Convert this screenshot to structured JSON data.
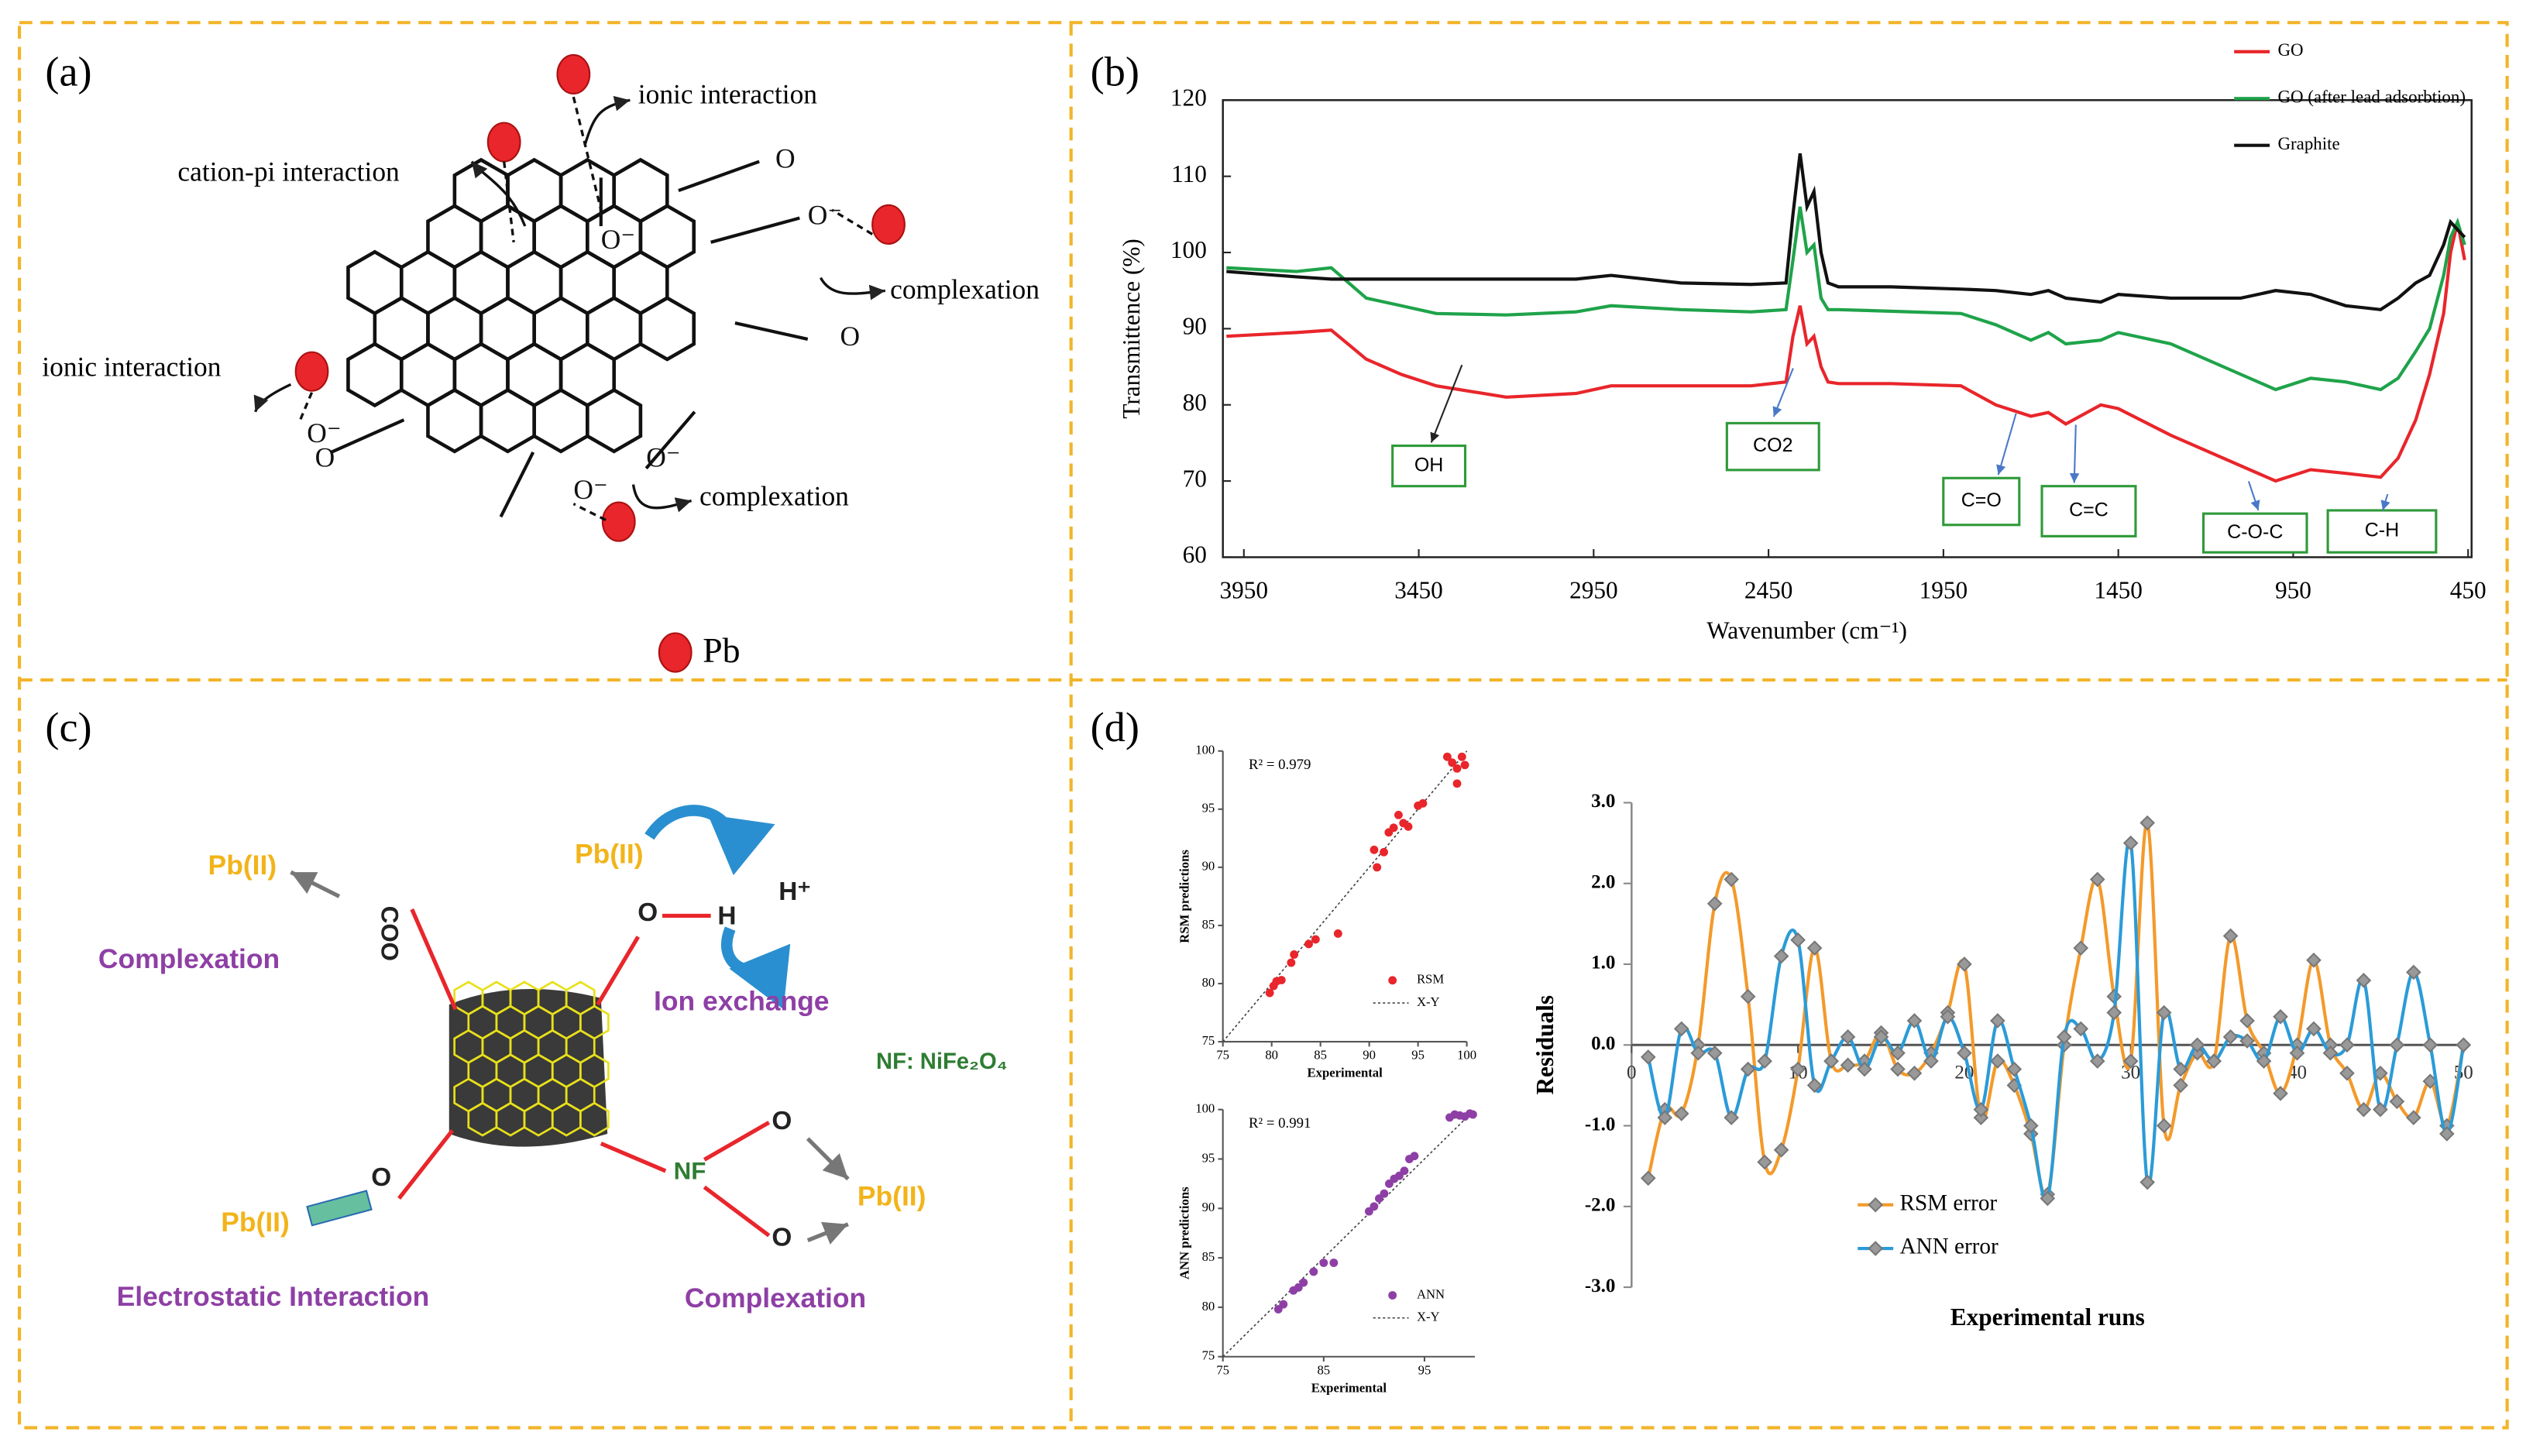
{
  "panel_labels": [
    "(a)",
    "(b)",
    "(c)",
    "(d)"
  ],
  "panel_a": {
    "labels": [
      "ionic interaction",
      "cation-pi interaction",
      "complexation",
      "ionic interaction",
      "complexation"
    ],
    "legend": "Pb"
  },
  "panel_c": {
    "labels": [
      "Pb(II)",
      "COO",
      "Complexation",
      "Pb(II)",
      "O",
      "H",
      "H⁺",
      "Ion exchange",
      "NF: NiFe₂O₄",
      "O",
      "Pb(II)",
      "Electrostatic Interaction",
      "NF",
      "O",
      "O",
      "Pb(II)",
      "Complexation"
    ]
  },
  "chart_data": [
    {
      "type": "line",
      "ylabel": "Transmittence (%)",
      "xlabel": "Wavenumber (cm⁻¹)",
      "xlim": [
        4010,
        440
      ],
      "ylim": [
        60,
        120
      ],
      "xticks": [
        3950,
        3450,
        2950,
        2450,
        1950,
        1450,
        950,
        450
      ],
      "yticks": [
        60,
        70,
        80,
        90,
        100,
        110,
        120
      ],
      "x": [
        4000,
        3800,
        3700,
        3600,
        3500,
        3400,
        3200,
        3000,
        2900,
        2700,
        2500,
        2400,
        2380,
        2360,
        2340,
        2320,
        2300,
        2280,
        2250,
        2100,
        1900,
        1800,
        1700,
        1650,
        1600,
        1500,
        1450,
        1300,
        1100,
        1000,
        900,
        800,
        700,
        650,
        600,
        560,
        520,
        500,
        480,
        460
      ],
      "series": [
        {
          "name": "GO",
          "color": "#e8262b",
          "values": [
            89,
            89.5,
            89.8,
            86,
            84,
            82.5,
            81,
            81.5,
            82.5,
            82.5,
            82.5,
            83,
            89,
            93,
            88,
            89,
            85,
            83,
            82.8,
            82.8,
            82.5,
            80,
            78.5,
            79,
            77.5,
            80,
            79.5,
            76,
            72,
            70,
            71.5,
            71,
            70.5,
            73,
            78,
            84,
            92,
            100,
            104,
            99
          ]
        },
        {
          "name": "GO (after lead adsorbtion)",
          "color": "#1fa34a",
          "values": [
            98,
            97.5,
            98,
            94,
            93,
            92,
            91.8,
            92.2,
            93,
            92.5,
            92.2,
            92.5,
            99,
            106,
            100,
            101,
            94,
            92.5,
            92.5,
            92.3,
            92,
            90.5,
            88.5,
            89.5,
            88,
            88.5,
            89.5,
            88,
            84,
            82,
            83.5,
            83,
            82,
            83.5,
            87,
            90,
            97,
            102,
            104,
            101
          ]
        },
        {
          "name": "Graphite",
          "color": "#111111",
          "values": [
            97.5,
            96.8,
            96.5,
            96.5,
            96.5,
            96.5,
            96.5,
            96.5,
            97,
            96,
            95.8,
            96,
            105,
            113,
            106,
            108,
            100,
            96,
            95.5,
            95.5,
            95.2,
            95,
            94.5,
            95,
            94,
            93.5,
            94.5,
            94,
            94,
            95,
            94.5,
            93,
            92.5,
            94,
            96,
            97,
            101,
            104,
            103,
            102
          ]
        }
      ],
      "annotations": [
        "OH",
        "CO2",
        "C=O",
        "C=C",
        "C-O-C",
        "C-H"
      ]
    },
    {
      "type": "scatter",
      "xlabel": "Experimental",
      "ylabel": "RSM predictions",
      "note": "R² = 0.979",
      "xlim": [
        75,
        100
      ],
      "ylim": [
        75,
        100
      ],
      "xticks": [
        75,
        80,
        85,
        90,
        95,
        100
      ],
      "yticks": [
        75,
        80,
        85,
        90,
        95,
        100
      ],
      "series": [
        {
          "name": "RSM",
          "color": "#e8262b",
          "x": [
            79.8,
            80.2,
            80.5,
            81,
            82,
            82.3,
            83.8,
            84.5,
            86.8,
            90.5,
            90.8,
            91.5,
            92,
            92.5,
            93,
            93.5,
            94,
            95,
            95.5,
            98,
            98.5,
            99,
            99.5,
            99.8,
            99
          ],
          "values": [
            79.2,
            79.8,
            80.2,
            80.3,
            81.8,
            82.5,
            83.4,
            83.8,
            84.3,
            91.5,
            90,
            91.3,
            93,
            93.4,
            94.5,
            93.8,
            93.5,
            95.3,
            95.5,
            99.5,
            99,
            98.5,
            99.5,
            98.8,
            97.2
          ]
        }
      ],
      "reference": "X-Y"
    },
    {
      "type": "scatter",
      "xlabel": "Experimental",
      "ylabel": "ANN predictions",
      "note": "R² = 0.991",
      "xlim": [
        75,
        100
      ],
      "ylim": [
        75,
        100
      ],
      "xticks": [
        75,
        85,
        95
      ],
      "yticks": [
        75,
        80,
        85,
        90,
        95,
        100
      ],
      "series": [
        {
          "name": "ANN",
          "color": "#8e3fa5",
          "x": [
            80.5,
            81,
            82,
            82.5,
            83,
            84,
            85,
            86,
            89.5,
            90,
            90.5,
            91,
            91.5,
            92,
            92.5,
            93,
            93.5,
            94,
            97.5,
            98,
            98.5,
            99,
            99.5,
            99.8
          ],
          "values": [
            79.8,
            80.3,
            81.7,
            82,
            82.5,
            83.6,
            84.5,
            84.5,
            89.7,
            90.2,
            91,
            91.5,
            92.5,
            93,
            93.3,
            93.8,
            95,
            95.3,
            99.2,
            99.5,
            99.4,
            99.3,
            99.6,
            99.5
          ]
        }
      ],
      "reference": "X-Y"
    },
    {
      "type": "line",
      "xlabel": "Experimental runs",
      "ylabel": "Residuals",
      "xlim": [
        0,
        50
      ],
      "ylim": [
        -3,
        3
      ],
      "xticks": [
        0,
        10,
        20,
        30,
        40,
        50
      ],
      "yticks": [
        {
          "value": 3,
          "label": "3.0"
        },
        {
          "value": 2,
          "label": "2.0"
        },
        {
          "value": 1,
          "label": "1.0"
        },
        {
          "value": 0,
          "label": "0.0"
        },
        {
          "value": -1,
          "label": "-1.0"
        },
        {
          "value": -2,
          "label": "-2.0"
        },
        {
          "value": -3,
          "label": "-3.0"
        }
      ],
      "x": [
        1,
        2,
        3,
        4,
        5,
        6,
        7,
        8,
        9,
        10,
        11,
        12,
        13,
        14,
        15,
        16,
        17,
        18,
        19,
        20,
        21,
        22,
        23,
        24,
        25,
        26,
        27,
        28,
        29,
        30,
        31,
        32,
        33,
        34,
        35,
        36,
        37,
        38,
        39,
        40,
        41,
        42,
        43,
        44,
        45,
        46,
        47,
        48,
        49,
        50
      ],
      "series": [
        {
          "name": "RSM error",
          "color": "#f39a2b",
          "values": [
            -1.65,
            -0.8,
            -0.85,
            0.0,
            1.75,
            2.05,
            0.6,
            -1.45,
            -1.3,
            -0.3,
            1.2,
            -0.2,
            -0.25,
            -0.2,
            0.15,
            -0.3,
            -0.35,
            -0.1,
            0.4,
            1.0,
            -0.9,
            -0.2,
            -0.5,
            -1.1,
            -1.85,
            0.0,
            1.2,
            2.05,
            0.6,
            -0.2,
            2.75,
            -1.0,
            -0.5,
            -0.1,
            -0.2,
            1.35,
            0.3,
            -0.1,
            -0.6,
            0.0,
            1.05,
            0.0,
            -0.35,
            -0.8,
            -0.35,
            -0.7,
            -0.9,
            -0.45,
            -1.0,
            0.0
          ]
        },
        {
          "name": "ANN error",
          "color": "#2b9bd8",
          "values": [
            -0.15,
            -0.9,
            0.2,
            -0.1,
            -0.1,
            -0.9,
            -0.3,
            -0.2,
            1.1,
            1.3,
            -0.5,
            -0.2,
            0.1,
            -0.3,
            0.1,
            -0.1,
            0.3,
            -0.2,
            0.35,
            -0.1,
            -0.8,
            0.3,
            -0.3,
            -1.0,
            -1.9,
            0.1,
            0.2,
            -0.2,
            0.4,
            2.5,
            -1.7,
            0.4,
            -0.3,
            0.0,
            -0.2,
            0.1,
            0.05,
            -0.2,
            0.35,
            -0.1,
            0.2,
            -0.1,
            0.0,
            0.8,
            -0.8,
            0.0,
            0.9,
            0.0,
            -1.1,
            0.0
          ]
        }
      ]
    }
  ]
}
